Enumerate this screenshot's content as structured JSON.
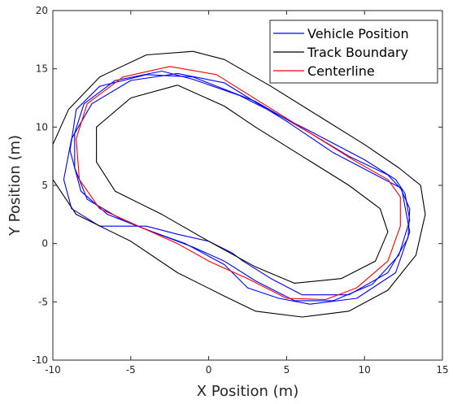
{
  "chart_data": {
    "type": "line",
    "title": "",
    "xlabel": "X Position (m)",
    "ylabel": "Y Position (m)",
    "xlim": [
      -10,
      15
    ],
    "ylim": [
      -10,
      20
    ],
    "xticks": [
      -10,
      -5,
      0,
      5,
      10,
      15
    ],
    "yticks": [
      -10,
      -5,
      0,
      5,
      10,
      15,
      20
    ],
    "grid": false,
    "legend_position": "top-right",
    "series": [
      {
        "name": "Vehicle Position",
        "color": "#0000ff",
        "x": [
          -3,
          -6,
          -8,
          -8.6,
          -8.6,
          -7.8,
          -5.5,
          -3,
          -1,
          1,
          3,
          5.5,
          8,
          10.5,
          12.2,
          12.9,
          12.6,
          12,
          10,
          6,
          2,
          -1,
          -3
        ],
        "y": [
          14.8,
          14,
          12,
          9.5,
          6.5,
          3.8,
          2,
          0.7,
          -0.3,
          -1.5,
          -3.2,
          -4.9,
          -4.9,
          -3.5,
          -1,
          2,
          4.3,
          5.5,
          7.2,
          10,
          12.7,
          14.1,
          14.8
        ]
      },
      {
        "name": "Vehicle Position",
        "color": "#0000ff",
        "x": [
          -2,
          -5,
          -7.5,
          -8.8,
          -9.3,
          -8.8,
          -7,
          -4,
          -2,
          0,
          1.5,
          2.2,
          4,
          6,
          9,
          11.5,
          12.8,
          12.9,
          12.3,
          11,
          8,
          5,
          1,
          -2
        ],
        "y": [
          14.6,
          14,
          12,
          9,
          5.5,
          3,
          1.5,
          1.5,
          0.8,
          0.2,
          -0.8,
          -1.5,
          -3,
          -4.4,
          -4.4,
          -2.5,
          0.5,
          3,
          4.8,
          5.7,
          7.8,
          10.5,
          13.8,
          14.6
        ]
      },
      {
        "name": "Vehicle Position",
        "color": "#0000ff",
        "x": [
          -4,
          -7,
          -8.5,
          -8.9,
          -8.2,
          -6.5,
          -4,
          -1.5,
          1,
          2.5,
          4.5,
          6.5,
          9.5,
          12,
          12.9,
          12.4,
          11.5,
          9,
          6.5,
          3,
          -1,
          -4
        ],
        "y": [
          14.5,
          13.5,
          11.5,
          8,
          4.5,
          2.5,
          1.2,
          0,
          -1.8,
          -3.8,
          -4.7,
          -5.2,
          -4.7,
          -2.5,
          1,
          4.6,
          5.9,
          7.5,
          9.5,
          12.2,
          14.3,
          14.5
        ]
      },
      {
        "name": "Track Boundary",
        "color": "#000000",
        "x": [
          -1,
          -4,
          -7,
          -9,
          -10,
          -10,
          -8.5,
          -5,
          -2,
          1,
          3,
          6,
          9,
          11.5,
          13.3,
          13.9,
          13.6,
          12.2,
          10,
          7,
          4,
          1,
          -1
        ],
        "y": [
          16.5,
          16.2,
          14.3,
          11.5,
          8.5,
          5.5,
          2.5,
          0.2,
          -2.5,
          -4.5,
          -5.8,
          -6.3,
          -5.8,
          -4,
          -1,
          2.5,
          5,
          6.5,
          8.5,
          11,
          13.5,
          15.8,
          16.5
        ]
      },
      {
        "name": "Track Boundary",
        "color": "#000000",
        "x": [
          -2,
          -5,
          -7.2,
          -7.2,
          -6,
          -3,
          0,
          3,
          5.5,
          8.5,
          10.7,
          11.5,
          11,
          9,
          6,
          3,
          1,
          -2
        ],
        "y": [
          13.6,
          12.5,
          10,
          7,
          4.5,
          2.5,
          0.2,
          -2,
          -3.4,
          -3,
          -1.5,
          1,
          3,
          5,
          7.5,
          10,
          11.8,
          13.6
        ]
      },
      {
        "name": "Centerline",
        "color": "#ff0000",
        "x": [
          -2.5,
          -5.5,
          -7.8,
          -8.5,
          -8.3,
          -7,
          -4.5,
          -2,
          0,
          2.5,
          5,
          7.5,
          9.5,
          11.5,
          12.3,
          12.3,
          11.5,
          9.5,
          6.5,
          3.5,
          0.5,
          -2.5
        ],
        "y": [
          15.2,
          14.3,
          12,
          9,
          5.5,
          3,
          1.5,
          0,
          -1.5,
          -3,
          -4.7,
          -4.8,
          -3.8,
          -1.5,
          1.5,
          4,
          5.5,
          7,
          9.5,
          12,
          14.5,
          15.2
        ]
      }
    ],
    "legend": [
      {
        "label": "Vehicle Position",
        "color": "#0000ff"
      },
      {
        "label": "Track Boundary",
        "color": "#000000"
      },
      {
        "label": "Centerline",
        "color": "#ff0000"
      }
    ]
  }
}
